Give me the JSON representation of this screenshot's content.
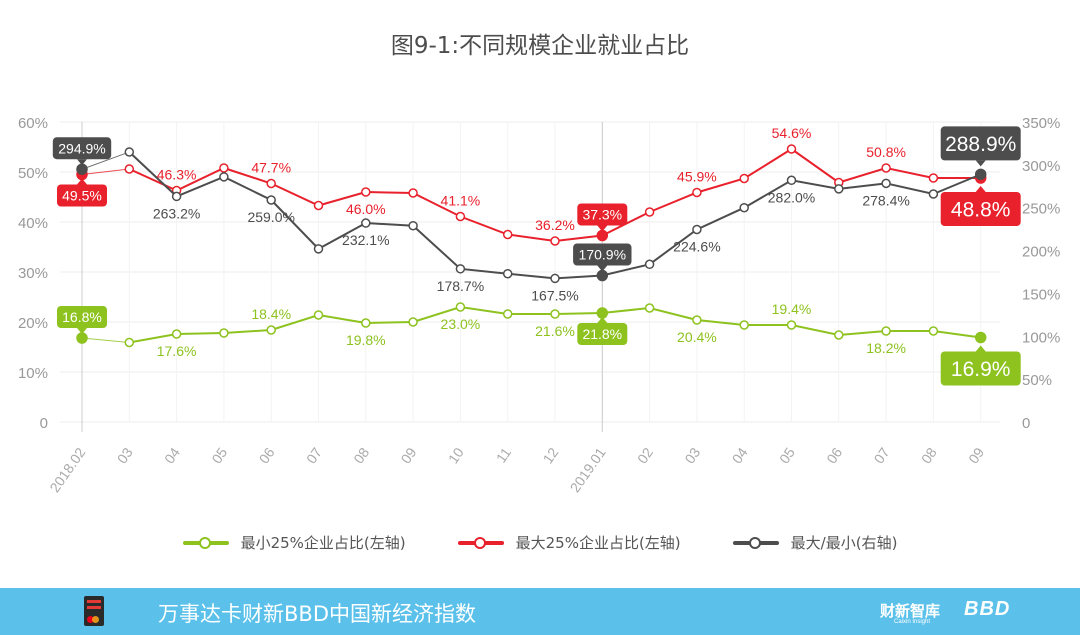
{
  "title": "图9-1:不同规模企业就业占比",
  "chart_data": {
    "type": "line",
    "title": "图9-1:不同规模企业就业占比",
    "categories": [
      "2018.02",
      "03",
      "04",
      "05",
      "06",
      "07",
      "08",
      "09",
      "10",
      "11",
      "12",
      "2019.01",
      "02",
      "03",
      "04",
      "05",
      "06",
      "07",
      "08",
      "09"
    ],
    "left_axis": {
      "ticks": [
        "0",
        "10%",
        "20%",
        "30%",
        "40%",
        "50%",
        "60%"
      ],
      "ylim": [
        0,
        60
      ]
    },
    "right_axis": {
      "ticks": [
        "0",
        "50%",
        "100%",
        "150%",
        "200%",
        "250%",
        "300%",
        "350%"
      ],
      "ylim": [
        0,
        350
      ]
    },
    "series": [
      {
        "name": "最小25%企业占比(左轴)",
        "axis": "left",
        "color": "#8dc21f",
        "values": [
          16.8,
          15.9,
          17.6,
          17.8,
          18.4,
          21.4,
          19.8,
          20.0,
          23.0,
          21.6,
          21.6,
          21.8,
          22.8,
          20.4,
          19.4,
          19.4,
          17.4,
          18.2,
          18.2,
          16.9
        ],
        "labels": {
          "0": "16.8%",
          "2": "17.6%",
          "4": "18.4%",
          "6": "19.8%",
          "8": "23.0%",
          "10": "21.6%",
          "11": "21.8%",
          "13": "20.4%",
          "15": "19.4%",
          "17": "18.2%",
          "19": "16.9%"
        }
      },
      {
        "name": "最大25%企业占比(左轴)",
        "axis": "left",
        "color": "#e8212c",
        "values": [
          49.5,
          50.6,
          46.3,
          50.8,
          47.7,
          43.3,
          46.0,
          45.8,
          41.1,
          37.5,
          36.2,
          37.3,
          42.0,
          45.9,
          48.7,
          54.6,
          47.9,
          50.8,
          48.8,
          48.8
        ],
        "labels": {
          "0": "49.5%",
          "2": "46.3%",
          "4": "47.7%",
          "6": "46.0%",
          "8": "41.1%",
          "10": "36.2%",
          "11": "37.3%",
          "13": "45.9%",
          "15": "54.6%",
          "17": "50.8%",
          "19": "48.8%"
        }
      },
      {
        "name": "最大/最小(右轴)",
        "axis": "right",
        "color": "#4d4d4d",
        "values": [
          294.9,
          315.0,
          263.2,
          286.0,
          259.0,
          202.0,
          232.1,
          229.0,
          178.7,
          173.0,
          167.5,
          170.9,
          184.0,
          224.6,
          250.0,
          282.0,
          272.0,
          278.4,
          266.0,
          288.9
        ],
        "labels": {
          "0": "294.9%",
          "2": "263.2%",
          "4": "259.0%",
          "6": "232.1%",
          "8": "178.7%",
          "10": "167.5%",
          "11": "170.9%",
          "13": "224.6%",
          "15": "282.0%",
          "17": "278.4%",
          "19": "288.9%"
        }
      }
    ],
    "highlight_indices": [
      0,
      11,
      19
    ]
  },
  "legend": [
    "最小25%企业占比(左轴)",
    "最大25%企业占比(左轴)",
    "最大/最小(右轴)"
  ],
  "footer": {
    "title": "万事达卡财新BBD中国新经济指数",
    "brand1": "财新智库",
    "brand1_sub": "Caixin Insight",
    "brand2": "BBD"
  }
}
